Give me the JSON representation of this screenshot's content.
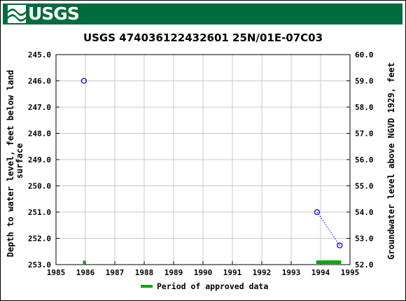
{
  "header": {
    "logo_text": "USGS",
    "background_color": "#006b3c"
  },
  "chart_data": {
    "type": "scatter",
    "title": "USGS 474036122432601 25N/01E-07C03",
    "ylabel_left": [
      "Depth to water level, feet below land",
      "surface"
    ],
    "ylabel_right": "Groundwater level above NGVD 1929, feet",
    "x_ticks": [
      "1985",
      "1986",
      "1987",
      "1988",
      "1989",
      "1990",
      "1991",
      "1992",
      "1993",
      "1994",
      "1995"
    ],
    "y_left_ticks": [
      "245.0",
      "246.0",
      "247.0",
      "248.0",
      "249.0",
      "250.0",
      "251.0",
      "252.0",
      "253.0"
    ],
    "y_right_ticks": [
      "60.0",
      "59.0",
      "58.0",
      "57.0",
      "56.0",
      "55.0",
      "54.0",
      "53.0",
      "52.0"
    ],
    "xlim": [
      1985,
      1995
    ],
    "ylim_left": [
      245.0,
      253.0
    ],
    "ylim_right": [
      60.0,
      52.0
    ],
    "y_left_inverted": true,
    "grid": true,
    "series": [
      {
        "points": [
          {
            "x": 1985.95,
            "y": 246.0
          },
          {
            "x": 1993.88,
            "y": 251.0
          },
          {
            "x": 1994.65,
            "y": 252.27
          }
        ],
        "marker": "open-circle",
        "color": "#0000cc",
        "connect_segments": [
          [
            1,
            2
          ]
        ],
        "line_style": "dotted"
      }
    ],
    "approved_periods": [
      {
        "start": 1985.92,
        "end": 1985.98
      },
      {
        "start": 1993.85,
        "end": 1994.7
      }
    ],
    "approved_color": "#00aa00",
    "legend": {
      "label": "Period of approved data",
      "position": "bottom-center"
    }
  }
}
